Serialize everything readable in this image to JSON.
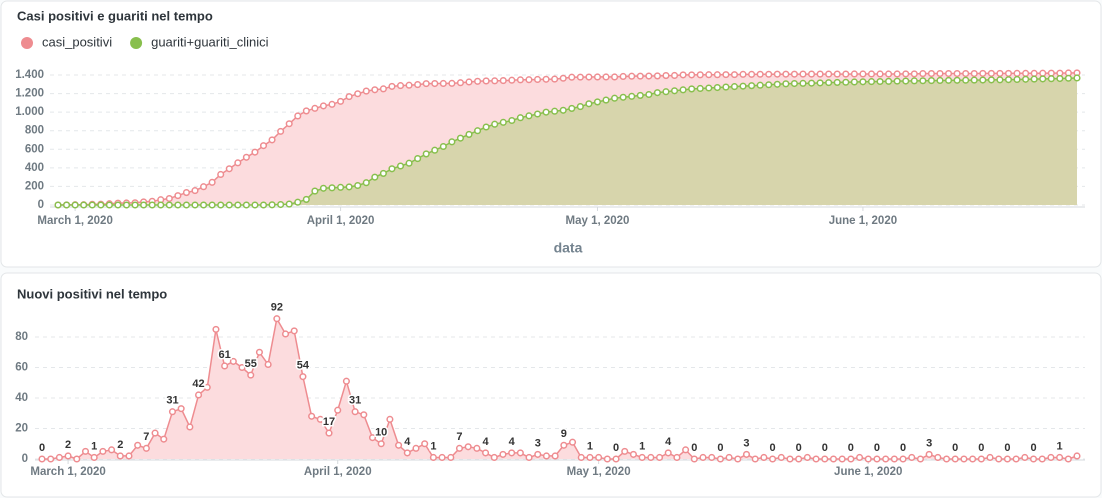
{
  "chart_data": [
    {
      "type": "area",
      "title": "Casi positivi e guariti nel tempo",
      "xlabel": "data",
      "legend": "top-left",
      "grid": true,
      "x": [
        "2020-02-28",
        "2020-02-29",
        "2020-03-01",
        "2020-03-02",
        "2020-03-03",
        "2020-03-04",
        "2020-03-05",
        "2020-03-06",
        "2020-03-07",
        "2020-03-08",
        "2020-03-09",
        "2020-03-10",
        "2020-03-11",
        "2020-03-12",
        "2020-03-13",
        "2020-03-14",
        "2020-03-15",
        "2020-03-16",
        "2020-03-17",
        "2020-03-18",
        "2020-03-19",
        "2020-03-20",
        "2020-03-21",
        "2020-03-22",
        "2020-03-23",
        "2020-03-24",
        "2020-03-25",
        "2020-03-26",
        "2020-03-27",
        "2020-03-28",
        "2020-03-29",
        "2020-03-30",
        "2020-03-31",
        "2020-04-01",
        "2020-04-02",
        "2020-04-03",
        "2020-04-04",
        "2020-04-05",
        "2020-04-06",
        "2020-04-07",
        "2020-04-08",
        "2020-04-09",
        "2020-04-10",
        "2020-04-11",
        "2020-04-12",
        "2020-04-13",
        "2020-04-14",
        "2020-04-15",
        "2020-04-16",
        "2020-04-17",
        "2020-04-18",
        "2020-04-19",
        "2020-04-20",
        "2020-04-21",
        "2020-04-22",
        "2020-04-23",
        "2020-04-24",
        "2020-04-25",
        "2020-04-26",
        "2020-04-27",
        "2020-04-28",
        "2020-04-29",
        "2020-04-30",
        "2020-05-01",
        "2020-05-02",
        "2020-05-03",
        "2020-05-04",
        "2020-05-05",
        "2020-05-06",
        "2020-05-07",
        "2020-05-08",
        "2020-05-09",
        "2020-05-10",
        "2020-05-11",
        "2020-05-12",
        "2020-05-13",
        "2020-05-14",
        "2020-05-15",
        "2020-05-16",
        "2020-05-17",
        "2020-05-18",
        "2020-05-19",
        "2020-05-20",
        "2020-05-21",
        "2020-05-22",
        "2020-05-23",
        "2020-05-24",
        "2020-05-25",
        "2020-05-26",
        "2020-05-27",
        "2020-05-28",
        "2020-05-29",
        "2020-05-30",
        "2020-05-31",
        "2020-06-01",
        "2020-06-02",
        "2020-06-03",
        "2020-06-04",
        "2020-06-05",
        "2020-06-06",
        "2020-06-07",
        "2020-06-08",
        "2020-06-09",
        "2020-06-10",
        "2020-06-11",
        "2020-06-12",
        "2020-06-13",
        "2020-06-14",
        "2020-06-15",
        "2020-06-16",
        "2020-06-17",
        "2020-06-18",
        "2020-06-19",
        "2020-06-20",
        "2020-06-21",
        "2020-06-22",
        "2020-06-23",
        "2020-06-24",
        "2020-06-25",
        "2020-06-26"
      ],
      "xticks": [
        {
          "value": "2020-03-01",
          "label": "March 1, 2020"
        },
        {
          "value": "2020-04-01",
          "label": "April 1, 2020"
        },
        {
          "value": "2020-05-01",
          "label": "May 1, 2020"
        },
        {
          "value": "2020-06-01",
          "label": "June 1, 2020"
        }
      ],
      "ylim": [
        0,
        1400
      ],
      "yticks": [
        0,
        200,
        400,
        600,
        800,
        {
          "value": 1000,
          "label": "1.000"
        },
        {
          "value": 1200,
          "label": "1.200"
        },
        {
          "value": 1400,
          "label": "1.400"
        }
      ],
      "series": [
        {
          "name": "casi_positivi",
          "color": "#ee8c90",
          "fill": "#fcdcde",
          "values": [
            0,
            1,
            3,
            3,
            8,
            9,
            14,
            20,
            22,
            24,
            33,
            40,
            57,
            70,
            101,
            134,
            155,
            197,
            244,
            329,
            390,
            454,
            514,
            569,
            639,
            701,
            793,
            875,
            959,
            1013,
            1041,
            1067,
            1084,
            1116,
            1167,
            1198,
            1227,
            1241,
            1251,
            1277,
            1286,
            1290,
            1297,
            1307,
            1308,
            1309,
            1310,
            1317,
            1325,
            1332,
            1336,
            1337,
            1340,
            1344,
            1348,
            1349,
            1352,
            1354,
            1356,
            1365,
            1376,
            1377,
            1378,
            1379,
            1379,
            1379,
            1384,
            1387,
            1388,
            1389,
            1390,
            1394,
            1395,
            1401,
            1401,
            1402,
            1403,
            1403,
            1404,
            1404,
            1407,
            1407,
            1408,
            1408,
            1409,
            1409,
            1409,
            1410,
            1410,
            1410,
            1410,
            1410,
            1410,
            1411,
            1411,
            1411,
            1411,
            1411,
            1411,
            1412,
            1412,
            1415,
            1416,
            1416,
            1416,
            1416,
            1416,
            1416,
            1417,
            1417,
            1417,
            1417,
            1418,
            1418,
            1418,
            1419,
            1420,
            1420,
            1422,
            1423
          ]
        },
        {
          "name": "guariti+guariti_clinici",
          "color": "#88bf4d",
          "fill": "#d7d5ac",
          "values": [
            0,
            0,
            0,
            0,
            0,
            0,
            0,
            0,
            0,
            0,
            0,
            0,
            0,
            0,
            0,
            0,
            0,
            0,
            0,
            0,
            0,
            0,
            0,
            0,
            0,
            2,
            5,
            10,
            30,
            60,
            150,
            180,
            185,
            190,
            195,
            210,
            240,
            300,
            340,
            390,
            420,
            450,
            500,
            550,
            590,
            630,
            680,
            720,
            760,
            800,
            840,
            870,
            890,
            910,
            940,
            960,
            980,
            1000,
            1010,
            1020,
            1040,
            1060,
            1090,
            1110,
            1130,
            1150,
            1160,
            1170,
            1180,
            1190,
            1210,
            1220,
            1230,
            1240,
            1250,
            1255,
            1260,
            1265,
            1270,
            1275,
            1280,
            1285,
            1290,
            1295,
            1300,
            1305,
            1308,
            1310,
            1312,
            1315,
            1318,
            1320,
            1322,
            1325,
            1327,
            1329,
            1330,
            1332,
            1334,
            1335,
            1337,
            1338,
            1340,
            1341,
            1342,
            1343,
            1344,
            1345,
            1346,
            1347,
            1348,
            1350,
            1352,
            1354,
            1356,
            1358,
            1360,
            1362,
            1365,
            1368
          ]
        }
      ]
    },
    {
      "type": "area",
      "title": "Nuovi positivi nel tempo",
      "grid": true,
      "data_labels": true,
      "color": "#ee8c90",
      "fill": "#fcdcde",
      "x": [
        "2020-02-27",
        "2020-02-28",
        "2020-02-29",
        "2020-03-01",
        "2020-03-02",
        "2020-03-03",
        "2020-03-04",
        "2020-03-05",
        "2020-03-06",
        "2020-03-07",
        "2020-03-08",
        "2020-03-09",
        "2020-03-10",
        "2020-03-11",
        "2020-03-12",
        "2020-03-13",
        "2020-03-14",
        "2020-03-15",
        "2020-03-16",
        "2020-03-17",
        "2020-03-18",
        "2020-03-19",
        "2020-03-20",
        "2020-03-21",
        "2020-03-22",
        "2020-03-23",
        "2020-03-24",
        "2020-03-25",
        "2020-03-26",
        "2020-03-27",
        "2020-03-28",
        "2020-03-29",
        "2020-03-30",
        "2020-03-31",
        "2020-04-01",
        "2020-04-02",
        "2020-04-03",
        "2020-04-04",
        "2020-04-05",
        "2020-04-06",
        "2020-04-07",
        "2020-04-08",
        "2020-04-09",
        "2020-04-10",
        "2020-04-11",
        "2020-04-12",
        "2020-04-13",
        "2020-04-14",
        "2020-04-15",
        "2020-04-16",
        "2020-04-17",
        "2020-04-18",
        "2020-04-19",
        "2020-04-20",
        "2020-04-21",
        "2020-04-22",
        "2020-04-23",
        "2020-04-24",
        "2020-04-25",
        "2020-04-26",
        "2020-04-27",
        "2020-04-28",
        "2020-04-29",
        "2020-04-30",
        "2020-05-01",
        "2020-05-02",
        "2020-05-03",
        "2020-05-04",
        "2020-05-05",
        "2020-05-06",
        "2020-05-07",
        "2020-05-08",
        "2020-05-09",
        "2020-05-10",
        "2020-05-11",
        "2020-05-12",
        "2020-05-13",
        "2020-05-14",
        "2020-05-15",
        "2020-05-16",
        "2020-05-17",
        "2020-05-18",
        "2020-05-19",
        "2020-05-20",
        "2020-05-21",
        "2020-05-22",
        "2020-05-23",
        "2020-05-24",
        "2020-05-25",
        "2020-05-26",
        "2020-05-27",
        "2020-05-28",
        "2020-05-29",
        "2020-05-30",
        "2020-05-31",
        "2020-06-01",
        "2020-06-02",
        "2020-06-03",
        "2020-06-04",
        "2020-06-05",
        "2020-06-06",
        "2020-06-07",
        "2020-06-08",
        "2020-06-09",
        "2020-06-10",
        "2020-06-11",
        "2020-06-12",
        "2020-06-13",
        "2020-06-14",
        "2020-06-15",
        "2020-06-16",
        "2020-06-17",
        "2020-06-18",
        "2020-06-19",
        "2020-06-20",
        "2020-06-21",
        "2020-06-22",
        "2020-06-23",
        "2020-06-24",
        "2020-06-25"
      ],
      "xticks": [
        {
          "value": "2020-03-01",
          "label": "March 1, 2020"
        },
        {
          "value": "2020-04-01",
          "label": "April 1, 2020"
        },
        {
          "value": "2020-05-01",
          "label": "May 1, 2020"
        },
        {
          "value": "2020-06-01",
          "label": "June 1, 2020"
        }
      ],
      "ylim": [
        0,
        100
      ],
      "yticks": [
        0,
        20,
        40,
        60,
        80
      ],
      "values": [
        0,
        0,
        1,
        2,
        0,
        5,
        1,
        5,
        6,
        2,
        2,
        9,
        7,
        17,
        13,
        31,
        33,
        21,
        42,
        47,
        85,
        61,
        64,
        60,
        55,
        70,
        62,
        92,
        82,
        84,
        54,
        28,
        26,
        17,
        32,
        51,
        31,
        29,
        14,
        10,
        26,
        9,
        4,
        7,
        10,
        1,
        1,
        1,
        7,
        8,
        7,
        4,
        1,
        3,
        4,
        4,
        1,
        3,
        2,
        2,
        9,
        11,
        1,
        1,
        1,
        0,
        0,
        5,
        3,
        1,
        1,
        1,
        4,
        1,
        6,
        0,
        1,
        1,
        0,
        1,
        0,
        3,
        0,
        1,
        0,
        1,
        0,
        0,
        1,
        0,
        0,
        0,
        0,
        0,
        1,
        0,
        0,
        0,
        0,
        0,
        1,
        0,
        3,
        1,
        0,
        0,
        0,
        0,
        0,
        1,
        0,
        0,
        0,
        1,
        0,
        0,
        1,
        1,
        0,
        2
      ]
    }
  ]
}
